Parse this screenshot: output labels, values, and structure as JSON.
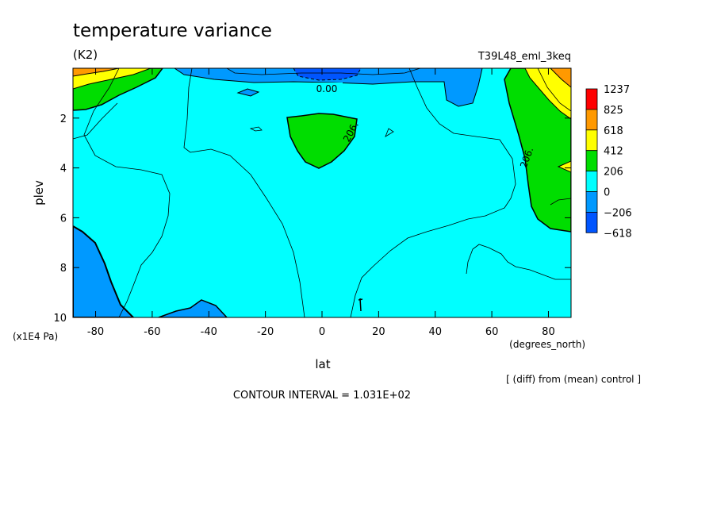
{
  "chart_data": {
    "type": "contour",
    "title": "temperature variance",
    "units": "(K2)",
    "experiment": "T39L48_eml_3keq",
    "xlabel": "lat",
    "xunits": "(degrees_north)",
    "ylabel": "plev",
    "yunits": "(x1E4 Pa)",
    "xlim": [
      -88,
      88
    ],
    "ylim": [
      0,
      10
    ],
    "y_inverted": true,
    "x_ticks": [
      -80,
      -60,
      -40,
      -20,
      0,
      20,
      40,
      60,
      80
    ],
    "x_tick_labels": [
      "-80",
      "-60",
      "-40",
      "-20",
      "0",
      "20",
      "40",
      "60",
      "80"
    ],
    "y_ticks": [
      2,
      4,
      6,
      8,
      10
    ],
    "y_tick_labels": [
      "2",
      "4",
      "6",
      "8",
      "10"
    ],
    "contour_labels": [
      "0.00",
      "206.",
      "206.",
      "1"
    ],
    "colorbar": {
      "labels": [
        "1237",
        "825",
        "618",
        "412",
        "206",
        "0",
        "−206",
        "−618"
      ],
      "colors": [
        "#ff0000",
        "#ff9900",
        "#ffff00",
        "#00dd00",
        "#00ffff",
        "#0099ff",
        "#0055ff"
      ]
    },
    "note": "[ (diff) from (mean) control ]",
    "contour_interval": "CONTOUR INTERVAL = 1.031E+02"
  }
}
